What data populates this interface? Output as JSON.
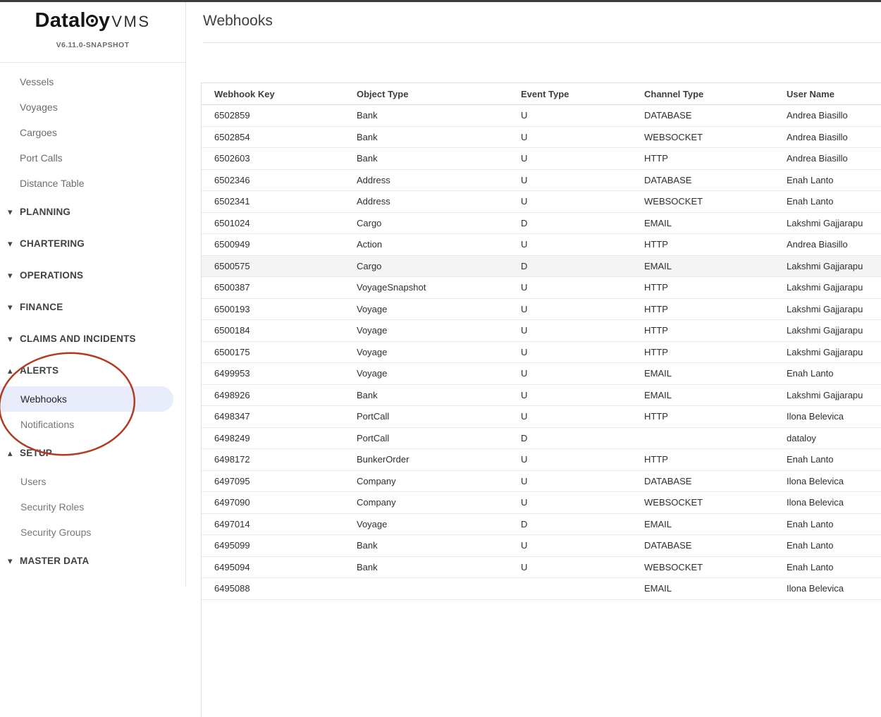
{
  "colors": {
    "top_bar": "#3c3c3e",
    "selected_item_bg": "#e9edfb",
    "highlight_row_bg": "#f4f4f5"
  },
  "app": {
    "logo": {
      "prefix": "Datal",
      "stylized_letter": "o",
      "suffix_letter": "y",
      "product": "VMS"
    },
    "version": "V6.11.0-SNAPSHOT"
  },
  "sidebar": {
    "top_items": [
      {
        "label": "Vessels"
      },
      {
        "label": "Voyages"
      },
      {
        "label": "Cargoes"
      },
      {
        "label": "Port Calls"
      },
      {
        "label": "Distance Table"
      }
    ],
    "sections": [
      {
        "label": "PLANNING",
        "expanded": false
      },
      {
        "label": "CHARTERING",
        "expanded": false
      },
      {
        "label": "OPERATIONS",
        "expanded": false
      },
      {
        "label": "FINANCE",
        "expanded": false
      },
      {
        "label": "CLAIMS AND INCIDENTS",
        "expanded": false
      },
      {
        "label": "ALERTS",
        "expanded": true,
        "items": [
          {
            "label": "Webhooks",
            "selected": true
          },
          {
            "label": "Notifications",
            "selected": false
          }
        ]
      },
      {
        "label": "SETUP",
        "expanded": true,
        "items": [
          {
            "label": "Users",
            "selected": false
          },
          {
            "label": "Security Roles",
            "selected": false
          },
          {
            "label": "Security Groups",
            "selected": false
          }
        ]
      },
      {
        "label": "MASTER DATA",
        "expanded": false
      }
    ]
  },
  "annotation": {
    "shape": "hand-drawn-ellipse",
    "color": "#b23b22",
    "around": "ALERTS section"
  },
  "main": {
    "title": "Webhooks",
    "table": {
      "columns": [
        "Webhook Key",
        "Object Type",
        "Event Type",
        "Channel Type",
        "User Name"
      ],
      "highlighted_row_index": 7,
      "rows": [
        [
          "6502859",
          "Bank",
          "U",
          "DATABASE",
          "Andrea Biasillo"
        ],
        [
          "6502854",
          "Bank",
          "U",
          "WEBSOCKET",
          "Andrea Biasillo"
        ],
        [
          "6502603",
          "Bank",
          "U",
          "HTTP",
          "Andrea Biasillo"
        ],
        [
          "6502346",
          "Address",
          "U",
          "DATABASE",
          "Enah Lanto"
        ],
        [
          "6502341",
          "Address",
          "U",
          "WEBSOCKET",
          "Enah Lanto"
        ],
        [
          "6501024",
          "Cargo",
          "D",
          "EMAIL",
          "Lakshmi Gajjarapu"
        ],
        [
          "6500949",
          "Action",
          "U",
          "HTTP",
          "Andrea Biasillo"
        ],
        [
          "6500575",
          "Cargo",
          "D",
          "EMAIL",
          "Lakshmi Gajjarapu"
        ],
        [
          "6500387",
          "VoyageSnapshot",
          "U",
          "HTTP",
          "Lakshmi Gajjarapu"
        ],
        [
          "6500193",
          "Voyage",
          "U",
          "HTTP",
          "Lakshmi Gajjarapu"
        ],
        [
          "6500184",
          "Voyage",
          "U",
          "HTTP",
          "Lakshmi Gajjarapu"
        ],
        [
          "6500175",
          "Voyage",
          "U",
          "HTTP",
          "Lakshmi Gajjarapu"
        ],
        [
          "6499953",
          "Voyage",
          "U",
          "EMAIL",
          "Enah Lanto"
        ],
        [
          "6498926",
          "Bank",
          "U",
          "EMAIL",
          "Lakshmi Gajjarapu"
        ],
        [
          "6498347",
          "PortCall",
          "U",
          "HTTP",
          "Ilona Belevica"
        ],
        [
          "6498249",
          "PortCall",
          "D",
          "",
          "dataloy"
        ],
        [
          "6498172",
          "BunkerOrder",
          "U",
          "HTTP",
          "Enah Lanto"
        ],
        [
          "6497095",
          "Company",
          "U",
          "DATABASE",
          "Ilona Belevica"
        ],
        [
          "6497090",
          "Company",
          "U",
          "WEBSOCKET",
          "Ilona Belevica"
        ],
        [
          "6497014",
          "Voyage",
          "D",
          "EMAIL",
          "Enah Lanto"
        ],
        [
          "6495099",
          "Bank",
          "U",
          "DATABASE",
          "Enah Lanto"
        ],
        [
          "6495094",
          "Bank",
          "U",
          "WEBSOCKET",
          "Enah Lanto"
        ],
        [
          "6495088",
          "",
          "",
          "EMAIL",
          "Ilona Belevica"
        ]
      ]
    }
  }
}
